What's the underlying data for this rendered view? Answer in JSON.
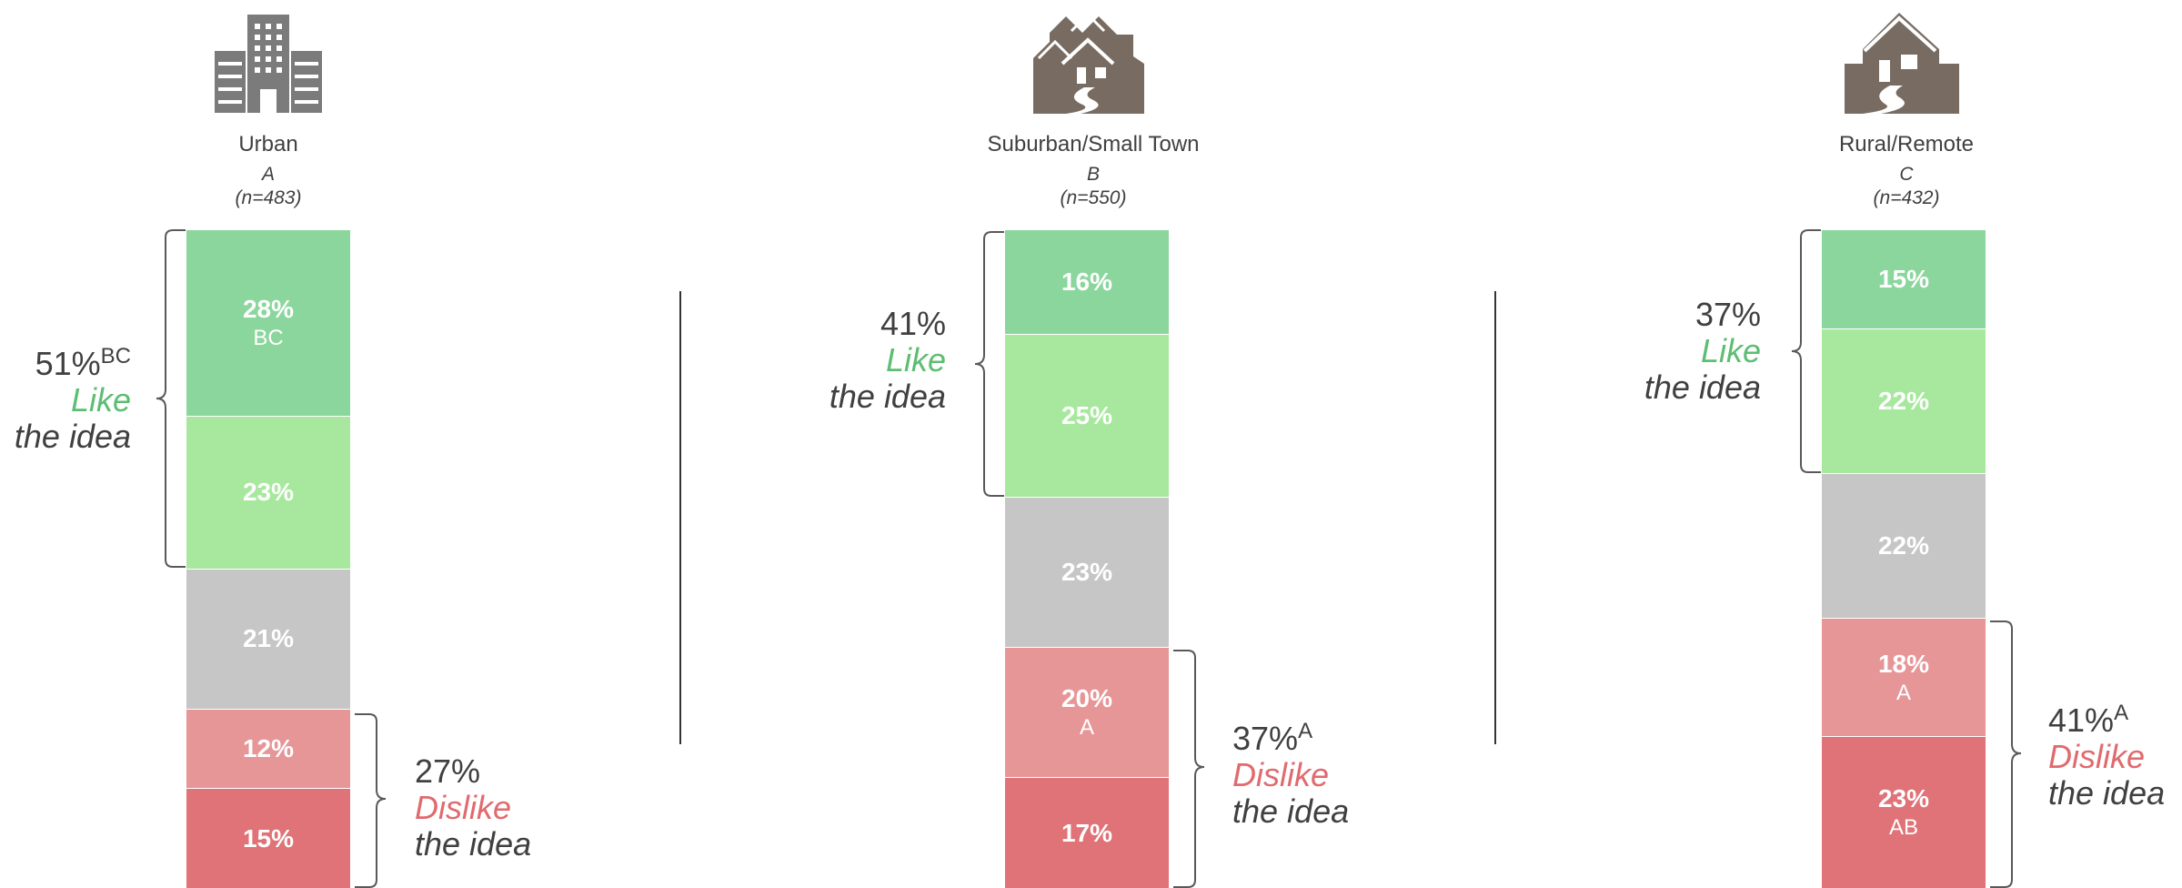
{
  "chart_data": {
    "type": "bar",
    "stacked": true,
    "orientation": "vertical",
    "colors": [
      "#8bd69d",
      "#a7e89e",
      "#c6c6c6",
      "#e79698",
      "#df7377"
    ],
    "groups": [
      {
        "name": "Urban",
        "letter": "A",
        "n": "(n=483)",
        "icon": "office-building-icon",
        "segments": [
          {
            "value": 28,
            "label": "28%",
            "sig": "BC"
          },
          {
            "value": 23,
            "label": "23%",
            "sig": ""
          },
          {
            "value": 21,
            "label": "21%",
            "sig": ""
          },
          {
            "value": 12,
            "label": "12%",
            "sig": ""
          },
          {
            "value": 15,
            "label": "15%",
            "sig": ""
          }
        ],
        "like": {
          "pct": "51%",
          "sig": "BC",
          "word": "Like",
          "rest": "the idea"
        },
        "dislike": {
          "pct": "27%",
          "sig": "",
          "word": "Dislike",
          "rest": "the idea"
        }
      },
      {
        "name": "Suburban/Small Town",
        "letter": "B",
        "n": "(n=550)",
        "icon": "suburban-houses-icon",
        "segments": [
          {
            "value": 16,
            "label": "16%",
            "sig": ""
          },
          {
            "value": 25,
            "label": "25%",
            "sig": ""
          },
          {
            "value": 23,
            "label": "23%",
            "sig": ""
          },
          {
            "value": 20,
            "label": "20%",
            "sig": "A"
          },
          {
            "value": 17,
            "label": "17%",
            "sig": ""
          }
        ],
        "like": {
          "pct": "41%",
          "sig": "",
          "word": "Like",
          "rest": "the idea"
        },
        "dislike": {
          "pct": "37%",
          "sig": "A",
          "word": "Dislike",
          "rest": "the idea"
        }
      },
      {
        "name": "Rural/Remote",
        "letter": "C",
        "n": "(n=432)",
        "icon": "rural-house-icon",
        "segments": [
          {
            "value": 15,
            "label": "15%",
            "sig": ""
          },
          {
            "value": 22,
            "label": "22%",
            "sig": ""
          },
          {
            "value": 22,
            "label": "22%",
            "sig": ""
          },
          {
            "value": 18,
            "label": "18%",
            "sig": "A"
          },
          {
            "value": 23,
            "label": "23%",
            "sig": "AB"
          }
        ],
        "like": {
          "pct": "37%",
          "sig": "",
          "word": "Like",
          "rest": "the idea"
        },
        "dislike": {
          "pct": "41%",
          "sig": "A",
          "word": "Dislike",
          "rest": "the idea"
        }
      }
    ]
  }
}
